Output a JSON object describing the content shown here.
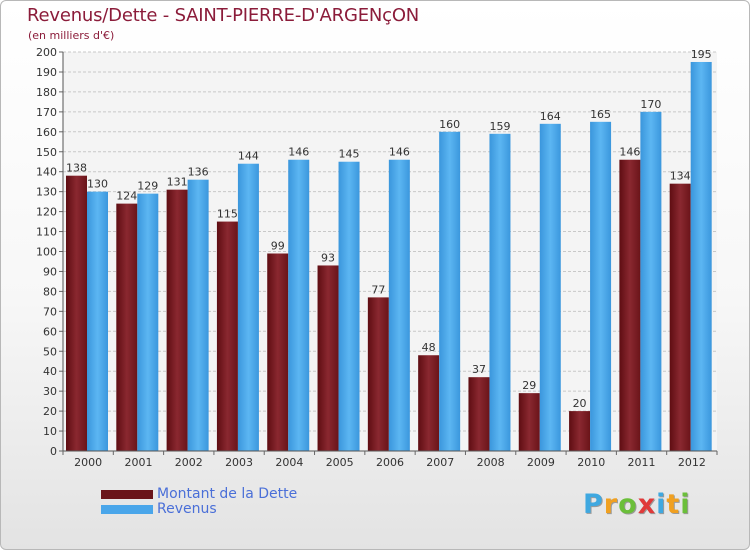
{
  "header": {
    "title": "Revenus/Dette - SAINT-PIERRE-D'ARGENçON",
    "subtitle": "(en milliers d'€)"
  },
  "logo": {
    "letters": [
      {
        "ch": "P",
        "color": "#3fa8e0"
      },
      {
        "ch": "r",
        "color": "#f0a020"
      },
      {
        "ch": "o",
        "color": "#6bbf3a"
      },
      {
        "ch": "x",
        "color": "#e03a3a"
      },
      {
        "ch": "i",
        "color": "#3fa8e0"
      },
      {
        "ch": "t",
        "color": "#f0a020"
      },
      {
        "ch": "i",
        "color": "#6bbf3a"
      }
    ]
  },
  "chart_data": {
    "type": "bar",
    "title": "Revenus/Dette - SAINT-PIERRE-D'ARGENçON",
    "subtitle": "(en milliers d'€)",
    "categories": [
      "2000",
      "2001",
      "2002",
      "2003",
      "2004",
      "2005",
      "2006",
      "2007",
      "2008",
      "2009",
      "2010",
      "2011",
      "2012"
    ],
    "series": [
      {
        "name": "Montant de la Dette",
        "color": "#7a1a1f",
        "values": [
          138,
          124,
          131,
          115,
          99,
          93,
          77,
          48,
          37,
          29,
          20,
          146,
          134
        ]
      },
      {
        "name": "Revenus",
        "color": "#4aa6ea",
        "values": [
          130,
          129,
          136,
          144,
          146,
          145,
          146,
          160,
          159,
          164,
          165,
          170,
          195
        ]
      }
    ],
    "ylim": [
      0,
      200
    ],
    "ytick_step": 10,
    "grid": true,
    "legend_position": "bottom-left"
  }
}
